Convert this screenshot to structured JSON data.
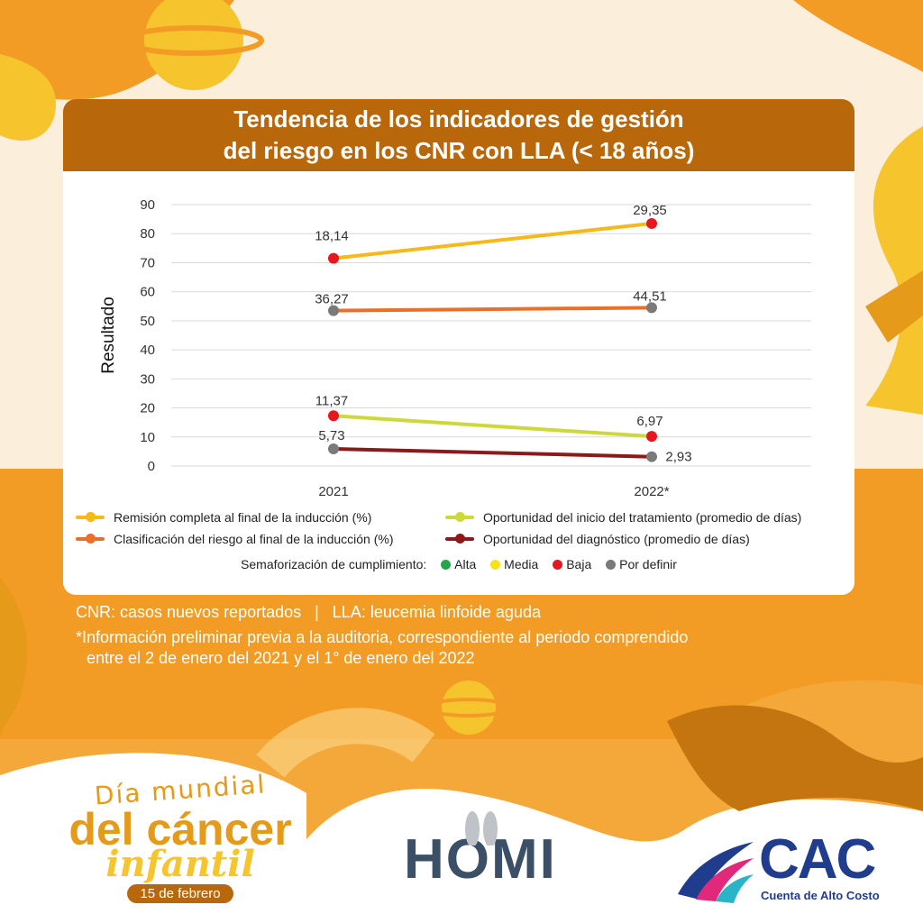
{
  "colors": {
    "header": "#b8680a",
    "orange_bg": "#f4a83a",
    "cream_bg": "#fbeedb",
    "remision": "#f6b81a",
    "clasificacion": "#e8702a",
    "oportunidad_inicio": "#cdd93a",
    "oportunidad_diagnostico": "#8b1a1a",
    "alta": "#22a84a",
    "media": "#f5e21a",
    "baja": "#e8161e",
    "por_definir": "#7a7a7a"
  },
  "header": {
    "title_line1": "Tendencia de los indicadores de gestión",
    "title_line2": "del riesgo en los CNR con LLA (< 18 años)"
  },
  "chart_data": {
    "type": "line",
    "categories": [
      "2021",
      "2022*"
    ],
    "ylabel": "Resultado",
    "ylim": [
      0,
      90
    ],
    "yticks": [
      0,
      10,
      20,
      30,
      40,
      50,
      60,
      70,
      80,
      90
    ],
    "grid": true,
    "series": [
      {
        "name": "Remisión completa al final de la inducción (%)",
        "color_key": "remision",
        "y_position": [
          71.5,
          83.5
        ],
        "labels": [
          "18,14",
          "29,35"
        ],
        "status": [
          "baja",
          "baja"
        ]
      },
      {
        "name": "Clasificación del riesgo al final de la inducción (%)",
        "color_key": "clasificacion",
        "y_position": [
          53.5,
          54.5
        ],
        "labels": [
          "36,27",
          "44,51"
        ],
        "status": [
          "por_definir",
          "por_definir"
        ]
      },
      {
        "name": "Oportunidad del inicio del tratamiento (promedio de días)",
        "color_key": "oportunidad_inicio",
        "y_position": [
          17.3,
          10.2
        ],
        "labels": [
          "11,37",
          "6,97"
        ],
        "status": [
          "baja",
          "baja"
        ]
      },
      {
        "name": "Oportunidad del diagnóstico (promedio de días)",
        "color_key": "oportunidad_diagnostico",
        "y_position": [
          5.9,
          3.2
        ],
        "labels": [
          "5,73",
          "2,93"
        ],
        "status": [
          "por_definir",
          "por_definir"
        ]
      }
    ]
  },
  "semaforo": {
    "label": "Semaforización de cumplimiento:",
    "items": [
      {
        "label": "Alta",
        "color_key": "alta"
      },
      {
        "label": "Media",
        "color_key": "media"
      },
      {
        "label": "Baja",
        "color_key": "baja"
      },
      {
        "label": "Por definir",
        "color_key": "por_definir"
      }
    ]
  },
  "notes": {
    "line1": "CNR: casos nuevos reportados   |   LLA: leucemia linfoide aguda",
    "line2": "*Información preliminar previa a la auditoria, correspondiente al periodo comprendido",
    "line3": "entre el 2 de enero del 2021 y el 1° de enero del 2022"
  },
  "logos": {
    "dmci_line1": "Día mundial",
    "dmci_line2": "del cáncer",
    "dmci_line3": "infantil",
    "dmci_date": "15 de febrero",
    "homi": "HOMI",
    "cac": "CAC",
    "cac_sub": "Cuenta de Alto Costo"
  }
}
